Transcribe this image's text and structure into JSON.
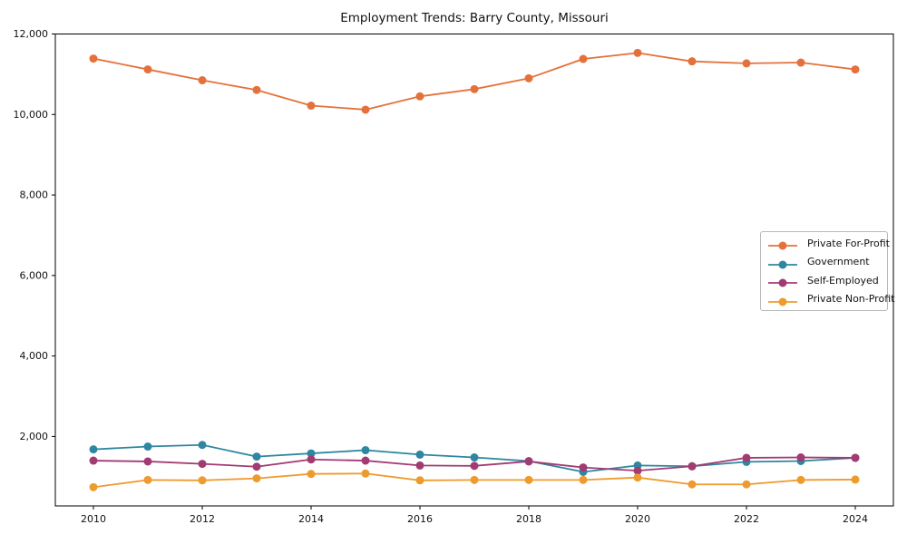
{
  "chart_data": {
    "type": "line",
    "title": "Employment Trends: Barry County, Missouri",
    "xlabel": "",
    "ylabel": "",
    "grid": false,
    "legend_position": "center right",
    "x": [
      2010,
      2011,
      2012,
      2013,
      2014,
      2015,
      2016,
      2017,
      2018,
      2019,
      2020,
      2021,
      2022,
      2023,
      2024
    ],
    "series": [
      {
        "name": "Private For-Profit",
        "color": "#E4713C",
        "values": [
          11390,
          11120,
          10850,
          10610,
          10220,
          10120,
          10450,
          10630,
          10900,
          11380,
          11530,
          11320,
          11270,
          11290,
          11120
        ]
      },
      {
        "name": "Government",
        "color": "#2E86A1",
        "values": [
          1680,
          1750,
          1790,
          1500,
          1580,
          1660,
          1550,
          1480,
          1390,
          1120,
          1280,
          1260,
          1370,
          1390,
          1470
        ]
      },
      {
        "name": "Self-Employed",
        "color": "#A23B72",
        "values": [
          1400,
          1380,
          1320,
          1250,
          1430,
          1400,
          1280,
          1270,
          1380,
          1230,
          1150,
          1260,
          1470,
          1480,
          1470
        ]
      },
      {
        "name": "Private Non-Profit",
        "color": "#EE9B2D",
        "values": [
          740,
          920,
          910,
          960,
          1070,
          1080,
          910,
          920,
          920,
          920,
          980,
          810,
          810,
          920,
          930
        ]
      }
    ],
    "xticks": [
      2010,
      2012,
      2014,
      2016,
      2018,
      2020,
      2022,
      2024
    ],
    "yticks": [
      {
        "value": 2000,
        "label": "2,000"
      },
      {
        "value": 4000,
        "label": "4,000"
      },
      {
        "value": 6000,
        "label": "6,000"
      },
      {
        "value": 8000,
        "label": "8,000"
      },
      {
        "value": 10000,
        "label": "10,000"
      },
      {
        "value": 12000,
        "label": "12,000"
      }
    ],
    "xlim": [
      2009.3,
      2024.7
    ],
    "ylim": [
      275,
      12000
    ],
    "axis_color": "#000000",
    "tick_label_color": "#111111"
  }
}
